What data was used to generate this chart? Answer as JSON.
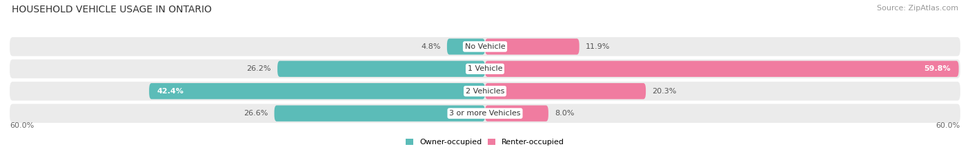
{
  "title": "HOUSEHOLD VEHICLE USAGE IN ONTARIO",
  "source": "Source: ZipAtlas.com",
  "categories": [
    "No Vehicle",
    "1 Vehicle",
    "2 Vehicles",
    "3 or more Vehicles"
  ],
  "owner_values": [
    4.8,
    26.2,
    42.4,
    26.6
  ],
  "renter_values": [
    11.9,
    59.8,
    20.3,
    8.0
  ],
  "owner_color": "#5bbcb8",
  "renter_color": "#f07ca0",
  "renter_color_strong": "#f07ca0",
  "bar_bg_color": "#ebebeb",
  "max_value": 60.0,
  "x_axis_label": "60.0%",
  "legend_owner": "Owner-occupied",
  "legend_renter": "Renter-occupied",
  "title_fontsize": 10,
  "source_fontsize": 8,
  "label_fontsize": 8,
  "category_fontsize": 8,
  "background_color": "#ffffff"
}
